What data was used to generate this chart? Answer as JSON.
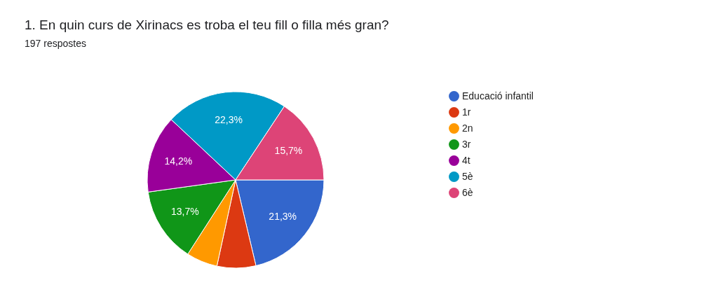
{
  "chart_data": {
    "type": "pie",
    "title": "1. En quin curs de Xirinacs es troba el teu fill o filla més gran?",
    "subtitle": "197 respostes",
    "categories": [
      "Educació infantil",
      "1r",
      "2n",
      "3r",
      "4t",
      "5è",
      "6è"
    ],
    "values": [
      21.3,
      7.1,
      5.7,
      13.7,
      14.2,
      22.3,
      15.7
    ],
    "value_labels": [
      "21,3%",
      null,
      null,
      "13,7%",
      "14,2%",
      "22,3%",
      "15,7%"
    ],
    "colors": [
      "#3366cc",
      "#dc3912",
      "#ff9900",
      "#109618",
      "#990099",
      "#0099c6",
      "#dd4477"
    ],
    "legend": "right"
  }
}
